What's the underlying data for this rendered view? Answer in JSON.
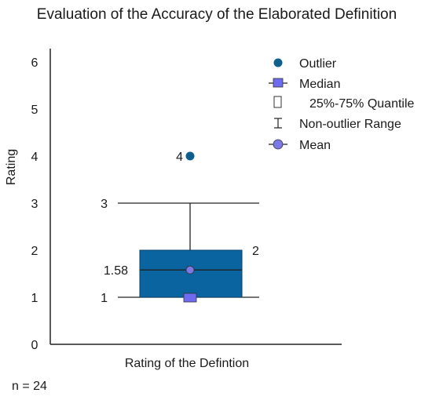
{
  "chart_data": {
    "type": "box",
    "title": "Evaluation of the Accuracy of the Elaborated Definition",
    "xlabel": "Rating of the Defintion",
    "ylabel": "Rating",
    "ylim": [
      0,
      6.5
    ],
    "yticks": [
      "0",
      "1",
      "2",
      "3",
      "4",
      "5",
      "6"
    ],
    "grid": false,
    "legend_position": "top-right",
    "sample_note": "n = 24",
    "box": {
      "q1": 1,
      "median": 1,
      "q3": 2,
      "whisker_low": 1,
      "whisker_high": 3,
      "mean": 1.58,
      "outliers": [
        4
      ]
    },
    "annotations": {
      "outlier_label": "4",
      "q3_label": "2",
      "whisker_high_label": "3",
      "mean_label": "1.58",
      "whisker_low_label": "1"
    },
    "legend": [
      {
        "key": "outlier",
        "label": "Outlier"
      },
      {
        "key": "median",
        "label": "Median"
      },
      {
        "key": "quantile",
        "label": "25%-75% Quantile"
      },
      {
        "key": "range",
        "label": "Non-outlier Range"
      },
      {
        "key": "mean",
        "label": "Mean"
      }
    ],
    "colors": {
      "box_fill": "#0a64a0",
      "box_stroke": "#0b3f66",
      "outlier": "#0e5f8e",
      "median_marker": "#6d6cf0",
      "mean_marker": "#7b78e8",
      "axis": "#222222",
      "text": "#1a1a1a"
    }
  }
}
